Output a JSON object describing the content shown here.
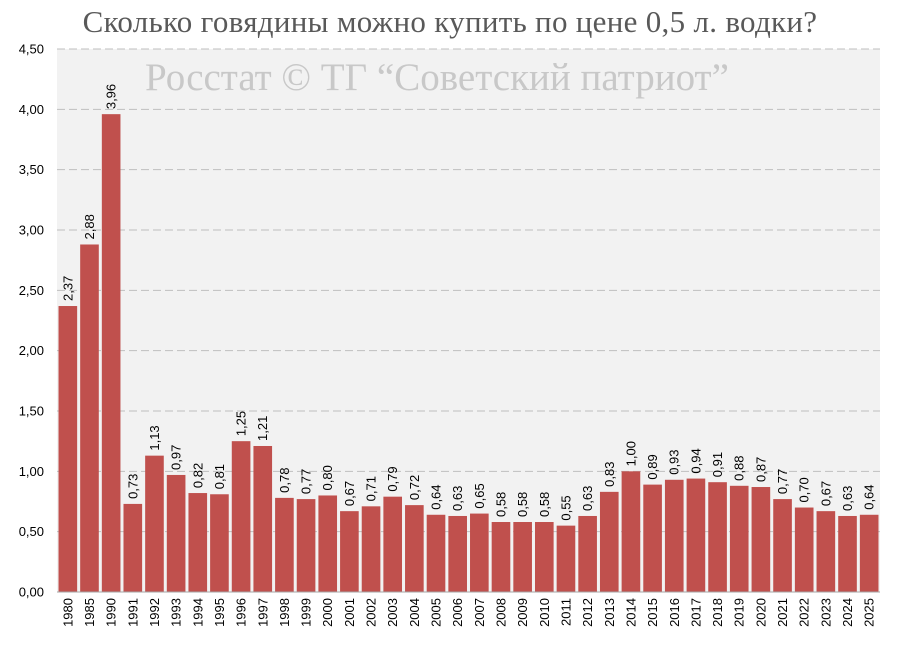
{
  "title": "Сколько говядины можно купить по цене 0,5 л. водки?",
  "watermark": "Росстат © ТГ “Советский патриот”",
  "colors": {
    "bar": "#c0504d",
    "plot_bg": "#f2f2f2",
    "grid": "#bfbfbf"
  },
  "chart_data": {
    "type": "bar",
    "title": "Сколько говядины можно купить по цене 0,5 л. водки?",
    "xlabel": "",
    "ylabel": "",
    "ylim": [
      0,
      4.5
    ],
    "yticks": [
      "0,00",
      "0,50",
      "1,00",
      "1,50",
      "2,00",
      "2,50",
      "3,00",
      "3,50",
      "4,00",
      "4,50"
    ],
    "grid": true,
    "legend": "none",
    "categories": [
      "1980",
      "1985",
      "1990",
      "1991",
      "1992",
      "1993",
      "1994",
      "1995",
      "1996",
      "1997",
      "1998",
      "1999",
      "2000",
      "2001",
      "2002",
      "2003",
      "2004",
      "2005",
      "2006",
      "2007",
      "2008",
      "2009",
      "2010",
      "2011",
      "2012",
      "2013",
      "2014",
      "2015",
      "2016",
      "2017",
      "2018",
      "2019",
      "2020",
      "2021",
      "2022",
      "2023",
      "2024",
      "2025"
    ],
    "values": [
      2.37,
      2.88,
      3.96,
      0.73,
      1.13,
      0.97,
      0.82,
      0.81,
      1.25,
      1.21,
      0.78,
      0.77,
      0.8,
      0.67,
      0.71,
      0.79,
      0.72,
      0.64,
      0.63,
      0.65,
      0.58,
      0.58,
      0.58,
      0.55,
      0.63,
      0.83,
      1.0,
      0.89,
      0.93,
      0.94,
      0.91,
      0.88,
      0.87,
      0.77,
      0.7,
      0.67,
      0.63,
      0.64
    ],
    "labels": [
      "2,37",
      "2,88",
      "3,96",
      "0,73",
      "1,13",
      "0,97",
      "0,82",
      "0,81",
      "1,25",
      "1,21",
      "0,78",
      "0,77",
      "0,80",
      "0,67",
      "0,71",
      "0,79",
      "0,72",
      "0,64",
      "0,63",
      "0,65",
      "0,58",
      "0,58",
      "0,58",
      "0,55",
      "0,63",
      "0,83",
      "1,00",
      "0,89",
      "0,93",
      "0,94",
      "0,91",
      "0,88",
      "0,87",
      "0,77",
      "0,70",
      "0,67",
      "0,63",
      "0,64"
    ]
  }
}
